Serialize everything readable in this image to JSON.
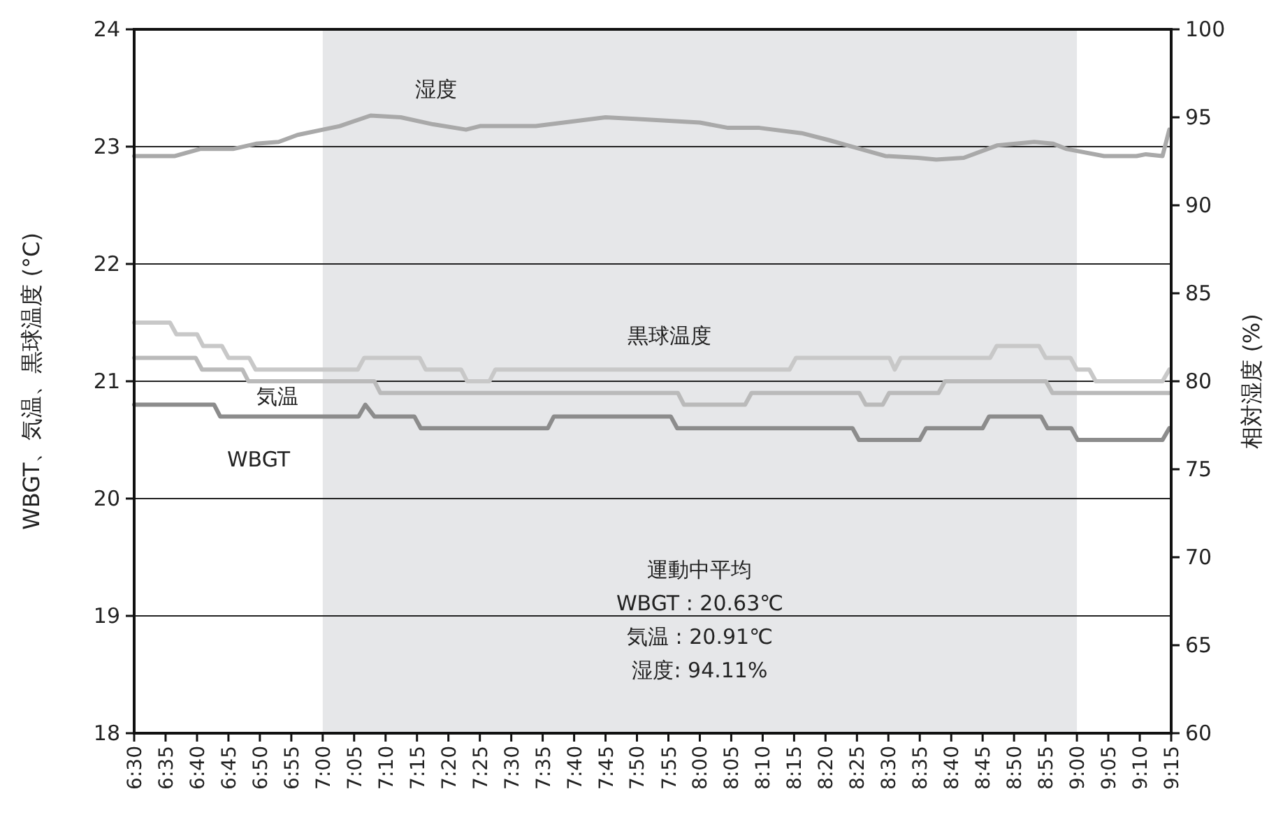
{
  "chart_data": {
    "type": "line",
    "xlim": [
      6.5,
      9.25
    ],
    "xticks": [
      {
        "value": 6.5,
        "label": "6:30"
      },
      {
        "value": 6.5833,
        "label": "6:35"
      },
      {
        "value": 6.6667,
        "label": "6:40"
      },
      {
        "value": 6.75,
        "label": "6:45"
      },
      {
        "value": 6.8333,
        "label": "6:50"
      },
      {
        "value": 6.9167,
        "label": "6:55"
      },
      {
        "value": 7.0,
        "label": "7:00"
      },
      {
        "value": 7.0833,
        "label": "7:05"
      },
      {
        "value": 7.1667,
        "label": "7:10"
      },
      {
        "value": 7.25,
        "label": "7:15"
      },
      {
        "value": 7.3333,
        "label": "7:20"
      },
      {
        "value": 7.4167,
        "label": "7:25"
      },
      {
        "value": 7.5,
        "label": "7:30"
      },
      {
        "value": 7.5833,
        "label": "7:35"
      },
      {
        "value": 7.6667,
        "label": "7:40"
      },
      {
        "value": 7.75,
        "label": "7:45"
      },
      {
        "value": 7.8333,
        "label": "7:50"
      },
      {
        "value": 7.9167,
        "label": "7:55"
      },
      {
        "value": 8.0,
        "label": "8:00"
      },
      {
        "value": 8.0833,
        "label": "8:05"
      },
      {
        "value": 8.1667,
        "label": "8:10"
      },
      {
        "value": 8.25,
        "label": "8:15"
      },
      {
        "value": 8.3333,
        "label": "8:20"
      },
      {
        "value": 8.4167,
        "label": "8:25"
      },
      {
        "value": 8.5,
        "label": "8:30"
      },
      {
        "value": 8.5833,
        "label": "8:35"
      },
      {
        "value": 8.6667,
        "label": "8:40"
      },
      {
        "value": 8.75,
        "label": "8:45"
      },
      {
        "value": 8.8333,
        "label": "8:50"
      },
      {
        "value": 8.9167,
        "label": "8:55"
      },
      {
        "value": 9.0,
        "label": "9:00"
      },
      {
        "value": 9.0833,
        "label": "9:05"
      },
      {
        "value": 9.1667,
        "label": "9:10"
      },
      {
        "value": 9.25,
        "label": "9:15"
      }
    ],
    "ylim": [
      18,
      24
    ],
    "yticks": [
      18,
      19,
      20,
      21,
      22,
      23,
      24
    ],
    "y2lim": [
      60,
      100
    ],
    "y2ticks": [
      60,
      65,
      70,
      75,
      80,
      85,
      90,
      95,
      100
    ],
    "ylabel": "WBGT、気温、黒球温度 (°C)",
    "y2label": "相対湿度 (%)",
    "grid": "y",
    "bands": [
      {
        "axis": "x",
        "from": 7.0,
        "to": 9.0,
        "label": null,
        "color": "#e6e7e9"
      }
    ],
    "annotations": [
      "運動中平均",
      "WBGT : 20.63℃",
      "気温 : 20.91℃",
      "湿度: 94.11%"
    ],
    "series": [
      {
        "name": "湿度",
        "color": "#a9a9a9",
        "axis": "y2",
        "x": [
          6.5,
          6.608,
          6.675,
          6.762,
          6.823,
          6.883,
          6.933,
          7.045,
          7.127,
          7.207,
          7.293,
          7.38,
          7.417,
          7.565,
          7.713,
          7.75,
          7.837,
          8.0,
          8.075,
          8.158,
          8.27,
          8.343,
          8.393,
          8.492,
          8.578,
          8.627,
          8.7,
          8.788,
          8.887,
          8.937,
          8.973,
          9.072,
          9.158,
          9.183,
          9.227,
          9.245
        ],
        "values": [
          92.8,
          92.8,
          93.2,
          93.2,
          93.5,
          93.6,
          94.0,
          94.5,
          95.1,
          95.0,
          94.6,
          94.3,
          94.5,
          94.5,
          94.9,
          95.0,
          94.9,
          94.7,
          94.4,
          94.4,
          94.1,
          93.7,
          93.4,
          92.8,
          92.7,
          92.6,
          92.7,
          93.4,
          93.6,
          93.5,
          93.2,
          92.8,
          92.8,
          92.9,
          92.8,
          94.3
        ]
      },
      {
        "name": "黒球温度",
        "color": "#c8c8c8",
        "x": [
          6.5,
          6.595,
          6.612,
          6.667,
          6.683,
          6.733,
          6.75,
          6.805,
          6.822,
          7.093,
          7.11,
          7.257,
          7.273,
          7.367,
          7.383,
          7.442,
          7.458,
          8.238,
          8.255,
          8.503,
          8.517,
          8.533,
          8.77,
          8.787,
          8.9,
          8.917,
          8.983,
          9.0,
          9.033,
          9.05,
          9.227,
          9.245
        ],
        "values": [
          21.5,
          21.5,
          21.4,
          21.4,
          21.3,
          21.3,
          21.2,
          21.2,
          21.1,
          21.1,
          21.2,
          21.2,
          21.1,
          21.1,
          21.0,
          21.0,
          21.1,
          21.1,
          21.2,
          21.2,
          21.1,
          21.2,
          21.2,
          21.3,
          21.3,
          21.2,
          21.2,
          21.1,
          21.1,
          21.0,
          21.0,
          21.1
        ]
      },
      {
        "name": "気温",
        "color": "#bababa",
        "x": [
          6.5,
          6.663,
          6.68,
          6.787,
          6.803,
          7.137,
          7.153,
          7.942,
          7.958,
          8.12,
          8.137,
          8.423,
          8.44,
          8.485,
          8.502,
          8.633,
          8.65,
          8.918,
          8.935,
          9.245
        ],
        "values": [
          21.2,
          21.2,
          21.1,
          21.1,
          21.0,
          21.0,
          20.9,
          20.9,
          20.8,
          20.8,
          20.9,
          20.9,
          20.8,
          20.8,
          20.9,
          20.9,
          21.0,
          21.0,
          20.9,
          20.9
        ]
      },
      {
        "name": "WBGT",
        "color": "#8c8c8c",
        "x": [
          6.5,
          6.712,
          6.728,
          7.095,
          7.113,
          7.137,
          7.243,
          7.26,
          7.597,
          7.613,
          7.923,
          7.94,
          8.405,
          8.422,
          8.583,
          8.6,
          8.75,
          8.767,
          8.905,
          8.922,
          8.985,
          9.002,
          9.227,
          9.245
        ],
        "values": [
          20.8,
          20.8,
          20.7,
          20.7,
          20.8,
          20.7,
          20.7,
          20.6,
          20.6,
          20.7,
          20.7,
          20.6,
          20.6,
          20.5,
          20.5,
          20.6,
          20.6,
          20.7,
          20.7,
          20.6,
          20.6,
          20.5,
          20.5,
          20.6
        ]
      }
    ]
  }
}
